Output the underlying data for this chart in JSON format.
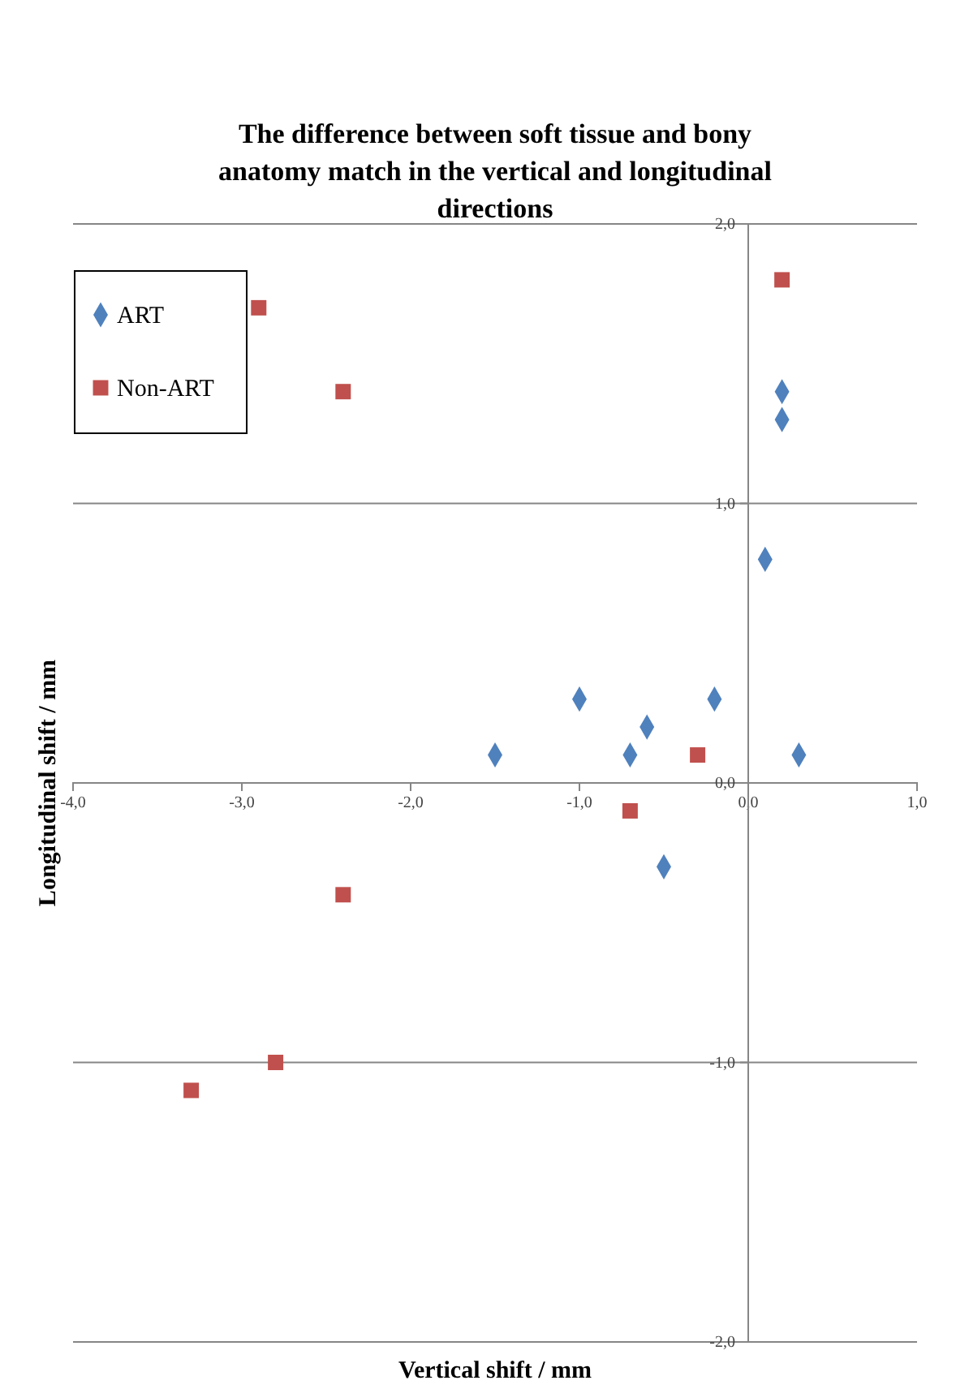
{
  "chart_data": {
    "type": "scatter",
    "title": "The difference between soft tissue and bony anatomy match in the vertical and longitudinal directions",
    "xlabel": "Vertical shift / mm",
    "ylabel": "Longitudinal shift / mm",
    "xlim": [
      -4,
      1
    ],
    "ylim": [
      -2,
      2
    ],
    "xticks": [
      {
        "value": -4,
        "label": "-4,0"
      },
      {
        "value": -3,
        "label": "-3,0"
      },
      {
        "value": -2,
        "label": "-2,0"
      },
      {
        "value": -1,
        "label": "-1,0"
      },
      {
        "value": 0,
        "label": "0,0"
      },
      {
        "value": 1,
        "label": "1,0"
      }
    ],
    "yticks": [
      {
        "value": -2,
        "label": "-2,0"
      },
      {
        "value": -1,
        "label": "-1,0"
      },
      {
        "value": 0,
        "label": "0,0"
      },
      {
        "value": 1,
        "label": "1,0"
      },
      {
        "value": 2,
        "label": "2,0"
      }
    ],
    "grid": "y",
    "legend": "top left",
    "series": [
      {
        "name": "ART",
        "color": "#4f81bd",
        "marker": "diamond",
        "x": [
          0.2,
          0.2,
          0.1,
          -1.0,
          -0.6,
          -0.2,
          -1.5,
          -0.7,
          0.3,
          -0.5
        ],
        "values": [
          1.4,
          1.3,
          0.8,
          0.3,
          0.2,
          0.3,
          0.1,
          0.1,
          0.1,
          -0.3
        ]
      },
      {
        "name": "Non-ART",
        "color": "#c0504d",
        "marker": "square",
        "x": [
          0.2,
          -2.9,
          -2.4,
          -0.3,
          -0.7,
          -2.4,
          -2.8,
          -3.3
        ],
        "values": [
          1.8,
          1.7,
          1.4,
          0.1,
          -0.1,
          -0.4,
          -1.0,
          -1.1
        ]
      }
    ]
  }
}
